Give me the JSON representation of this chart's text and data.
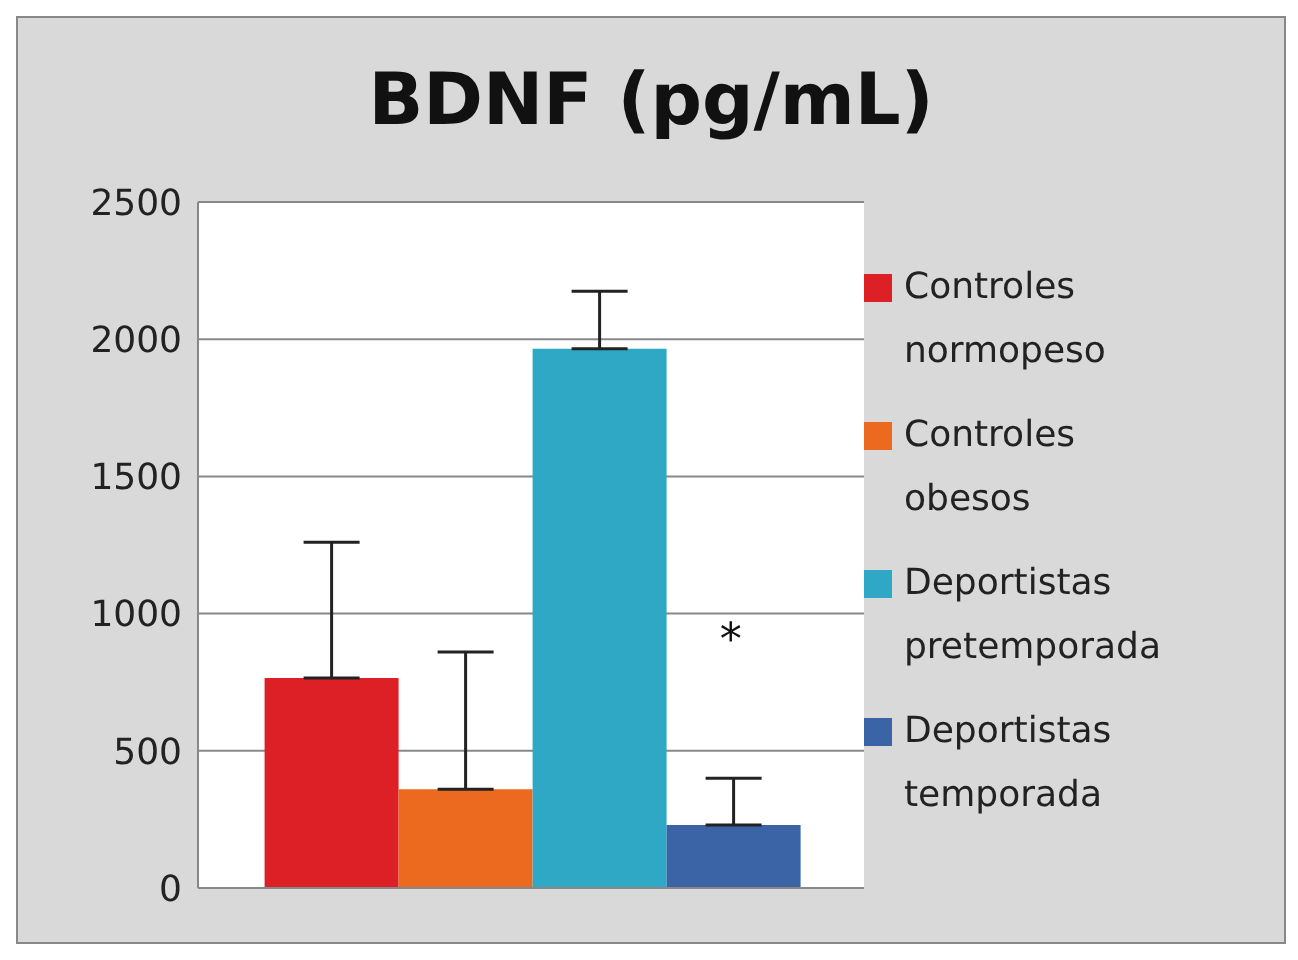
{
  "chart_data": {
    "type": "bar",
    "title": "BDNF (pg/mL)",
    "categories": [
      null
    ],
    "series": [
      {
        "name": "Controles normopeso",
        "color": "#dd1f26",
        "values": [
          765
        ],
        "errors": [
          [
            765,
            1260
          ]
        ]
      },
      {
        "name": "Controles obesos",
        "color": "#ec6a1f",
        "values": [
          360
        ],
        "errors": [
          [
            360,
            860
          ]
        ]
      },
      {
        "name": "Deportistas pretemporada",
        "color": "#2ea8c4",
        "values": [
          1965
        ],
        "errors": [
          [
            1965,
            2175
          ]
        ]
      },
      {
        "name": "Deportistas temporada",
        "color": "#3a64a6",
        "values": [
          230
        ],
        "errors": [
          [
            230,
            400
          ]
        ]
      }
    ],
    "ylim": [
      0,
      2500
    ],
    "yticks": [
      0,
      500,
      1000,
      1500,
      2000,
      2500
    ],
    "grid": "y",
    "legend": "right",
    "annotations": [
      "*"
    ]
  }
}
